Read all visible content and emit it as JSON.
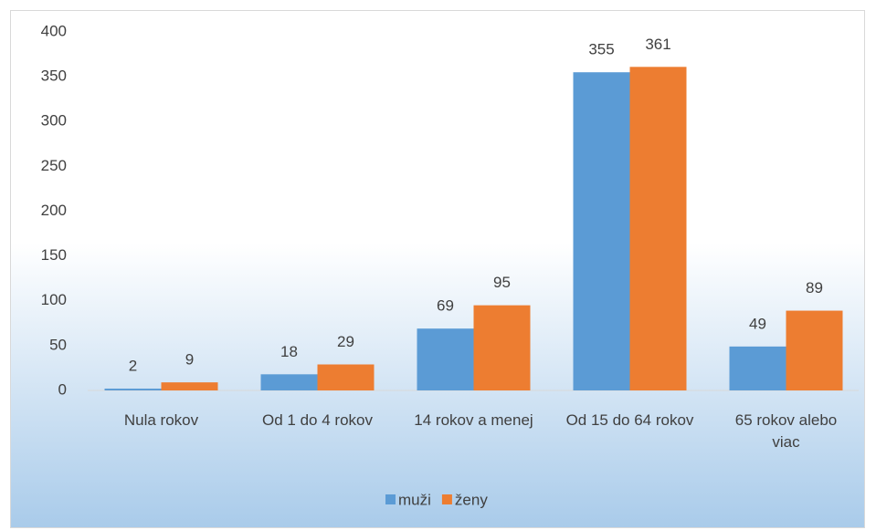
{
  "chart_data": {
    "type": "bar",
    "categories": [
      "Nula rokov",
      "Od 1 do 4 rokov",
      "14 rokov a menej",
      "Od 15 do 64 rokov",
      "65 rokov alebo viac"
    ],
    "series": [
      {
        "name": "muži",
        "color": "#5b9bd5",
        "values": [
          2,
          18,
          69,
          355,
          49
        ]
      },
      {
        "name": "ženy",
        "color": "#ed7d31",
        "values": [
          9,
          29,
          95,
          361,
          89
        ]
      }
    ],
    "ylim": [
      0,
      400
    ],
    "yticks": [
      0,
      50,
      100,
      150,
      200,
      250,
      300,
      350,
      400
    ],
    "grid": false,
    "legend": "bottom"
  }
}
